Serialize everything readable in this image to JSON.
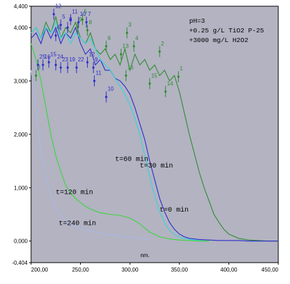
{
  "chart_data": {
    "type": "line",
    "xlabel": "nm.",
    "ylabel": "",
    "xlim": [
      200,
      450
    ],
    "ylim": [
      -0.404,
      4.4
    ],
    "grid": false,
    "plot_background": "#b3b3c2",
    "x_ticks": [
      "200,00",
      "250,00",
      "300,00",
      "350,00",
      "400,00",
      "450,00"
    ],
    "y_ticks": [
      "-0,404",
      "0,000",
      "1,000",
      "2,000",
      "3,000",
      "4,000",
      "4,400"
    ],
    "annotations": [
      "pH=3",
      "+0.25 g/L TiO2 P-25",
      "+3000 mg/L H2O2"
    ],
    "series": [
      {
        "name": "t=0 min",
        "color": "#2e8b2e",
        "label_at": [
          330,
          0.55
        ],
        "x": [
          200,
          205,
          210,
          215,
          220,
          225,
          230,
          235,
          240,
          245,
          250,
          255,
          260,
          265,
          270,
          275,
          280,
          285,
          290,
          295,
          300,
          305,
          310,
          315,
          320,
          325,
          330,
          335,
          340,
          345,
          350,
          355,
          360,
          365,
          370,
          375,
          380,
          385,
          390,
          395,
          400,
          410,
          420,
          430,
          440,
          450
        ],
        "y": [
          3.9,
          4.0,
          3.8,
          4.1,
          3.9,
          4.2,
          3.8,
          4.0,
          3.9,
          4.1,
          3.8,
          3.7,
          3.9,
          3.6,
          3.5,
          3.6,
          3.4,
          3.5,
          3.3,
          3.6,
          3.2,
          3.5,
          3.3,
          3.4,
          3.2,
          3.3,
          3.1,
          3.2,
          3.0,
          3.1,
          2.8,
          2.4,
          2.0,
          1.65,
          1.3,
          1.0,
          0.75,
          0.5,
          0.35,
          0.22,
          0.13,
          0.05,
          0.02,
          0.01,
          0.0,
          0.0
        ]
      },
      {
        "name": "t=30 min",
        "color": "#2b2bcc",
        "label_at": [
          310,
          1.38
        ],
        "x": [
          200,
          205,
          210,
          215,
          220,
          225,
          230,
          235,
          240,
          245,
          250,
          255,
          260,
          265,
          270,
          275,
          280,
          285,
          290,
          295,
          300,
          305,
          310,
          315,
          320,
          325,
          330,
          335,
          340,
          345,
          350,
          355,
          360,
          370,
          380,
          390,
          400,
          410,
          420,
          430,
          440,
          450
        ],
        "y": [
          3.8,
          3.9,
          3.7,
          4.0,
          3.8,
          4.0,
          3.7,
          3.9,
          3.8,
          4.0,
          3.7,
          3.5,
          3.6,
          3.3,
          3.4,
          3.2,
          3.2,
          3.05,
          3.0,
          2.9,
          2.75,
          2.5,
          2.2,
          1.9,
          1.5,
          1.15,
          0.8,
          0.55,
          0.35,
          0.22,
          0.13,
          0.08,
          0.05,
          0.03,
          0.02,
          0.01,
          0.01,
          0.01,
          0.0,
          0.0,
          0.0,
          0.0
        ]
      },
      {
        "name": "t=60 min",
        "color": "#33d6d6",
        "label_at": [
          285,
          1.5
        ],
        "x": [
          200,
          205,
          210,
          215,
          220,
          225,
          230,
          235,
          240,
          245,
          250,
          255,
          260,
          265,
          270,
          275,
          280,
          285,
          290,
          295,
          300,
          305,
          310,
          315,
          320,
          325,
          330,
          335,
          340,
          345,
          350,
          360,
          370,
          380
        ],
        "y": [
          3.9,
          4.0,
          3.8,
          4.0,
          3.9,
          4.1,
          3.8,
          3.9,
          3.7,
          3.9,
          3.8,
          3.7,
          3.8,
          3.6,
          3.4,
          3.3,
          3.2,
          3.05,
          2.9,
          2.75,
          2.55,
          2.3,
          2.0,
          1.6,
          1.2,
          0.85,
          0.55,
          0.35,
          0.2,
          0.12,
          0.07,
          0.03,
          0.01,
          0.0
        ]
      },
      {
        "name": "t=120 min",
        "color": "#3ad63a",
        "label_at": [
          225,
          0.88
        ],
        "x": [
          200,
          205,
          210,
          215,
          220,
          225,
          230,
          235,
          240,
          245,
          250,
          255,
          260,
          270,
          280,
          290,
          300,
          305,
          310,
          315,
          320,
          330,
          340,
          350,
          360,
          370,
          380
        ],
        "y": [
          3.7,
          3.4,
          3.0,
          2.5,
          2.0,
          1.6,
          1.3,
          1.05,
          0.9,
          0.8,
          0.72,
          0.65,
          0.6,
          0.53,
          0.5,
          0.48,
          0.43,
          0.38,
          0.32,
          0.24,
          0.17,
          0.08,
          0.04,
          0.02,
          0.01,
          0.0,
          0.0
        ]
      },
      {
        "name": "t=240 min",
        "color": "#a8b8e6",
        "label_at": [
          228,
          0.3
        ],
        "x": [
          200,
          205,
          210,
          215,
          220,
          225,
          230,
          235,
          240,
          245,
          250,
          255,
          260,
          270,
          280,
          290,
          300,
          310,
          320
        ],
        "y": [
          3.2,
          2.4,
          1.7,
          1.2,
          0.85,
          0.62,
          0.48,
          0.38,
          0.32,
          0.27,
          0.24,
          0.21,
          0.19,
          0.15,
          0.12,
          0.09,
          0.07,
          0.05,
          0.03
        ]
      }
    ],
    "markers": [
      {
        "label": "1",
        "x": 349,
        "y": 3.08,
        "color": "#2e8b2e"
      },
      {
        "label": "2",
        "x": 330,
        "y": 3.55,
        "color": "#2e8b2e"
      },
      {
        "label": "4",
        "x": 304,
        "y": 3.65,
        "color": "#2e8b2e"
      },
      {
        "label": "3",
        "x": 297,
        "y": 3.9,
        "color": "#2e8b2e"
      },
      {
        "label": "13",
        "x": 291,
        "y": 3.5,
        "color": "#2e8b2e"
      },
      {
        "label": "14",
        "x": 336,
        "y": 2.8,
        "color": "#2e8b2e"
      },
      {
        "label": "15",
        "x": 320,
        "y": 2.95,
        "color": "#2e8b2e"
      },
      {
        "label": "16",
        "x": 296,
        "y": 3.1,
        "color": "#2e8b2e"
      },
      {
        "label": "6",
        "x": 276,
        "y": 3.65,
        "color": "#2e8b2e"
      },
      {
        "label": "8",
        "x": 257,
        "y": 3.95,
        "color": "#2e8b2e"
      },
      {
        "label": "9",
        "x": 247,
        "y": 4.0,
        "color": "#2e8b2e"
      },
      {
        "label": "3",
        "x": 205,
        "y": 3.1,
        "color": "#2e8b2e"
      },
      {
        "label": "12",
        "x": 223,
        "y": 4.25,
        "color": "#2b2bcc"
      },
      {
        "label": "5",
        "x": 230,
        "y": 4.05,
        "color": "#2b2bcc"
      },
      {
        "label": "6",
        "x": 225,
        "y": 3.85,
        "color": "#2b2bcc"
      },
      {
        "label": "8",
        "x": 237,
        "y": 4.0,
        "color": "#2b2bcc"
      },
      {
        "label": "10",
        "x": 248,
        "y": 4.1,
        "color": "#2b2bcc"
      },
      {
        "label": "11",
        "x": 240,
        "y": 4.15,
        "color": "#2b2bcc"
      },
      {
        "label": "24",
        "x": 225,
        "y": 3.3,
        "color": "#2b2bcc"
      },
      {
        "label": "23",
        "x": 230,
        "y": 3.25,
        "color": "#2b2bcc"
      },
      {
        "label": "19",
        "x": 237,
        "y": 3.25,
        "color": "#2b2bcc"
      },
      {
        "label": "22",
        "x": 246,
        "y": 3.25,
        "color": "#2b2bcc"
      },
      {
        "label": "15",
        "x": 218,
        "y": 3.35,
        "color": "#2b2bcc"
      },
      {
        "label": "25",
        "x": 207,
        "y": 3.3,
        "color": "#2b2bcc"
      },
      {
        "label": "16",
        "x": 212,
        "y": 3.3,
        "color": "#2b2bcc"
      },
      {
        "label": "12",
        "x": 257,
        "y": 3.35,
        "color": "#2b2bcc"
      },
      {
        "label": "9",
        "x": 263,
        "y": 3.25,
        "color": "#2b2bcc"
      },
      {
        "label": "11",
        "x": 264,
        "y": 3.0,
        "color": "#2b2bcc"
      },
      {
        "label": "10",
        "x": 276,
        "y": 2.7,
        "color": "#2b2bcc"
      },
      {
        "label": "7",
        "x": 256,
        "y": 4.1,
        "color": "#2b2bcc"
      },
      {
        "label": "5",
        "x": 252,
        "y": 4.15,
        "color": "#2e8b2e"
      }
    ]
  }
}
